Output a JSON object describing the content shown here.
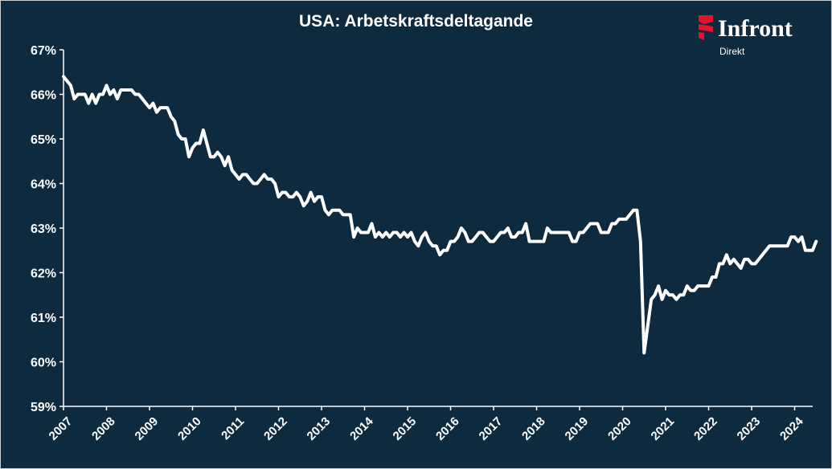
{
  "header": {
    "title": "USA: Arbetskraftsdeltagande"
  },
  "brand": {
    "name": "Infront",
    "subtitle": "Direkt",
    "mark_icon": "infront-flag-icon",
    "mark_color": "#e8112d"
  },
  "colors": {
    "background": "#0d2a3e",
    "line": "#ffffff",
    "axis": "#ffffff"
  },
  "chart_data": {
    "type": "line",
    "title": "USA: Arbetskraftsdeltagande",
    "xlabel": "",
    "ylabel": "",
    "ylim": [
      59,
      67
    ],
    "xlim": [
      2007.0,
      2024.42
    ],
    "y_ticks": [
      59,
      60,
      61,
      62,
      63,
      64,
      65,
      66,
      67
    ],
    "y_tick_labels": [
      "59%",
      "60%",
      "61%",
      "62%",
      "63%",
      "64%",
      "65%",
      "66%",
      "67%"
    ],
    "x_ticks": [
      2007,
      2008,
      2009,
      2010,
      2011,
      2012,
      2013,
      2014,
      2015,
      2016,
      2017,
      2018,
      2019,
      2020,
      2021,
      2022,
      2023,
      2024
    ],
    "x_tick_labels": [
      "2007",
      "2008",
      "2009",
      "2010",
      "2011",
      "2012",
      "2013",
      "2014",
      "2015",
      "2016",
      "2017",
      "2018",
      "2019",
      "2020",
      "2021",
      "2022",
      "2023",
      "2024"
    ],
    "grid": false,
    "legend": "none",
    "series": [
      {
        "frequency": "monthly",
        "start": "2007-01",
        "values": [
          66.4,
          66.3,
          66.2,
          65.9,
          66.0,
          66.0,
          66.0,
          65.8,
          66.0,
          65.8,
          66.0,
          66.0,
          66.2,
          66.0,
          66.1,
          65.9,
          66.1,
          66.1,
          66.1,
          66.1,
          66.0,
          66.0,
          65.9,
          65.8,
          65.7,
          65.8,
          65.6,
          65.7,
          65.7,
          65.7,
          65.5,
          65.4,
          65.1,
          65.0,
          65.0,
          64.6,
          64.8,
          64.9,
          64.9,
          65.2,
          64.9,
          64.6,
          64.6,
          64.7,
          64.6,
          64.4,
          64.6,
          64.3,
          64.2,
          64.1,
          64.2,
          64.2,
          64.1,
          64.0,
          64.0,
          64.1,
          64.2,
          64.1,
          64.1,
          64.0,
          63.7,
          63.8,
          63.8,
          63.7,
          63.7,
          63.8,
          63.7,
          63.5,
          63.6,
          63.8,
          63.6,
          63.7,
          63.7,
          63.4,
          63.3,
          63.4,
          63.4,
          63.4,
          63.3,
          63.3,
          63.3,
          62.8,
          63.0,
          62.9,
          62.9,
          62.9,
          63.1,
          62.8,
          62.9,
          62.8,
          62.9,
          62.8,
          62.9,
          62.9,
          62.8,
          62.9,
          62.8,
          62.9,
          62.7,
          62.6,
          62.8,
          62.9,
          62.7,
          62.6,
          62.6,
          62.4,
          62.5,
          62.5,
          62.7,
          62.7,
          62.8,
          63.0,
          62.9,
          62.7,
          62.7,
          62.8,
          62.9,
          62.9,
          62.8,
          62.7,
          62.7,
          62.8,
          62.9,
          62.9,
          63.0,
          62.8,
          62.8,
          62.9,
          62.9,
          63.1,
          62.7,
          62.7,
          62.7,
          62.7,
          62.7,
          63.0,
          62.9,
          62.9,
          62.9,
          62.9,
          62.9,
          62.9,
          62.7,
          62.7,
          62.9,
          62.9,
          63.0,
          63.1,
          63.1,
          63.1,
          62.9,
          62.9,
          62.9,
          63.1,
          63.1,
          63.2,
          63.2,
          63.2,
          63.3,
          63.4,
          63.4,
          62.7,
          60.2,
          60.8,
          61.4,
          61.5,
          61.7,
          61.4,
          61.6,
          61.5,
          61.5,
          61.4,
          61.5,
          61.5,
          61.7,
          61.6,
          61.6,
          61.7,
          61.7,
          61.7,
          61.7,
          61.9,
          61.9,
          62.2,
          62.2,
          62.4,
          62.2,
          62.3,
          62.2,
          62.1,
          62.3,
          62.3,
          62.2,
          62.2,
          62.3,
          62.4,
          62.5,
          62.6,
          62.6,
          62.6,
          62.6,
          62.6,
          62.6,
          62.8,
          62.8,
          62.7,
          62.8,
          62.5,
          62.5,
          62.5,
          62.7
        ]
      }
    ]
  }
}
